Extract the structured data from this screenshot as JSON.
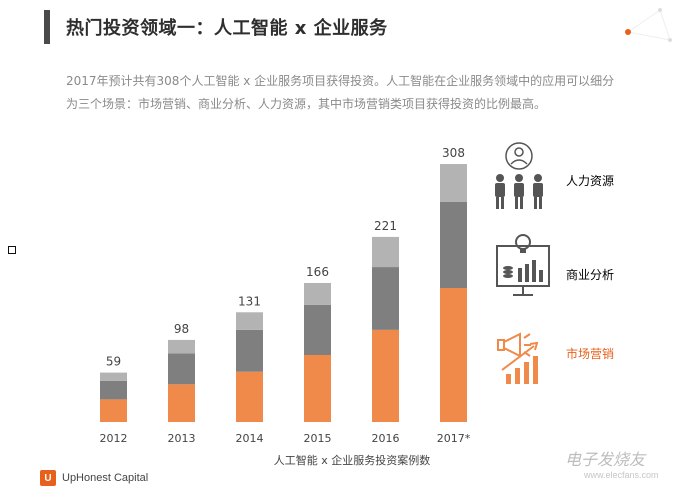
{
  "header": {
    "title": "热门投资领域一：人工智能 x 企业服务"
  },
  "intro": {
    "text": "2017年预计共有308个人工智能 x 企业服务项目获得投资。人工智能在企业服务领域中的应用可以细分为三个场景：市场营销、商业分析、人力资源，其中市场营销类项目获得投资的比例最高。"
  },
  "chart_data": {
    "type": "bar",
    "stacked": true,
    "title": "人工智能 x 企业服务投资案例数",
    "xlabel": "人工智能 x 企业服务投资案例数",
    "ylabel": "",
    "categories": [
      "2012",
      "2013",
      "2014",
      "2015",
      "2016",
      "2017*"
    ],
    "totals": [
      59,
      98,
      131,
      166,
      221,
      308
    ],
    "series": [
      {
        "name": "市场营销",
        "color": "#f08a4b",
        "values": [
          27,
          45,
          60,
          80,
          110,
          160
        ]
      },
      {
        "name": "商业分析",
        "color": "#7f7f7f",
        "values": [
          22,
          37,
          50,
          60,
          75,
          103
        ]
      },
      {
        "name": "人力资源",
        "color": "#b3b3b3",
        "values": [
          10,
          16,
          21,
          26,
          36,
          45
        ]
      }
    ],
    "ylim": [
      0,
      320
    ],
    "grid": false,
    "legend": "right"
  },
  "categories_panel": [
    {
      "label": "人力资源",
      "icon": "people-icon",
      "color": "#333333"
    },
    {
      "label": "商业分析",
      "icon": "analytics-icon",
      "color": "#333333"
    },
    {
      "label": "市场营销",
      "icon": "marketing-icon",
      "color": "#e8601c"
    }
  ],
  "footer": {
    "logo_mark": "U",
    "logo_text": "UpHonest Capital",
    "watermark": "电子发烧友",
    "watermark_sub": "www.elecfans.com"
  }
}
